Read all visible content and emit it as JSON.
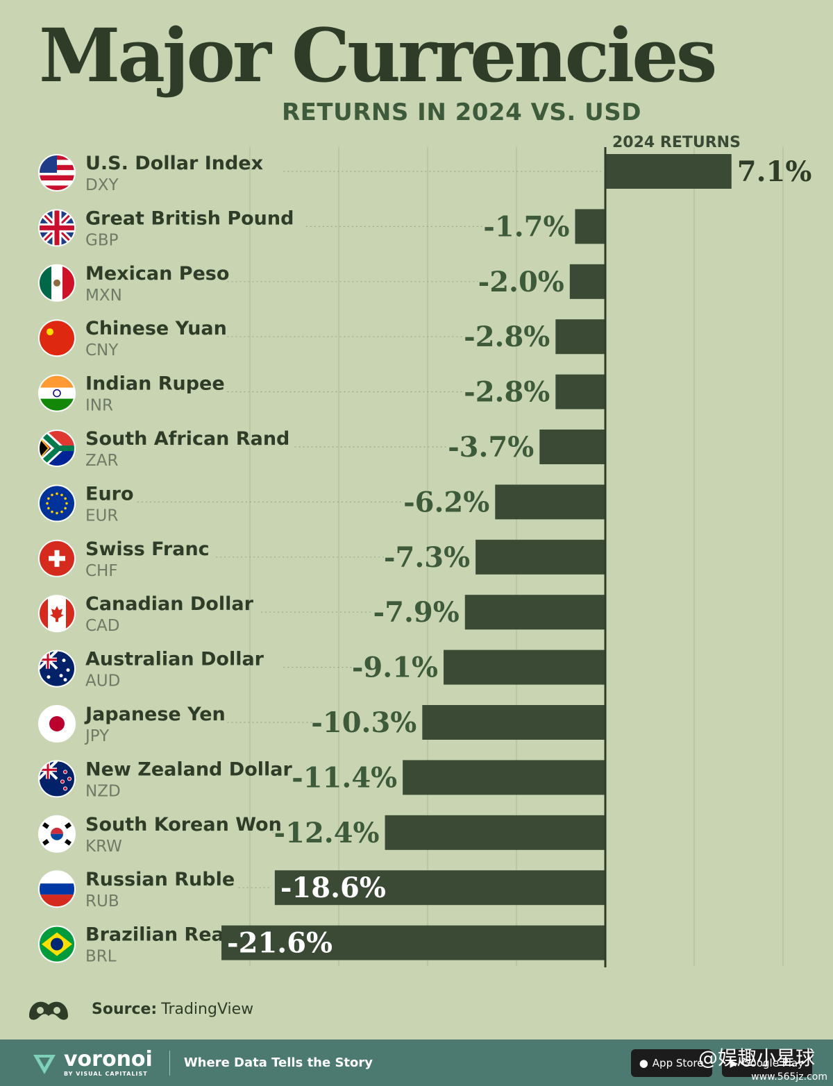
{
  "header": {
    "title": "Major Currencies",
    "subtitle": "RETURNS IN 2024 VS. USD"
  },
  "chart_data": {
    "type": "bar",
    "orientation": "horizontal",
    "title": "Major Currencies",
    "subtitle": "RETURNS IN 2024 VS. USD",
    "value_header": "2024 RETURNS",
    "unit": "%",
    "xlim": [
      -21.6,
      10
    ],
    "grid": true,
    "categories": [
      {
        "name": "U.S. Dollar Index",
        "code": "DXY",
        "flag": "us-flag"
      },
      {
        "name": "Great British Pound",
        "code": "GBP",
        "flag": "uk-flag"
      },
      {
        "name": "Mexican Peso",
        "code": "MXN",
        "flag": "mexico-flag"
      },
      {
        "name": "Chinese Yuan",
        "code": "CNY",
        "flag": "china-flag"
      },
      {
        "name": "Indian Rupee",
        "code": "INR",
        "flag": "india-flag"
      },
      {
        "name": "South African Rand",
        "code": "ZAR",
        "flag": "south-africa-flag"
      },
      {
        "name": "Euro",
        "code": "EUR",
        "flag": "eu-flag"
      },
      {
        "name": "Swiss Franc",
        "code": "CHF",
        "flag": "switzerland-flag"
      },
      {
        "name": "Canadian Dollar",
        "code": "CAD",
        "flag": "canada-flag"
      },
      {
        "name": "Australian Dollar",
        "code": "AUD",
        "flag": "australia-flag"
      },
      {
        "name": "Japanese Yen",
        "code": "JPY",
        "flag": "japan-flag"
      },
      {
        "name": "New Zealand Dollar",
        "code": "NZD",
        "flag": "new-zealand-flag"
      },
      {
        "name": "South Korean Won",
        "code": "KRW",
        "flag": "south-korea-flag"
      },
      {
        "name": "Russian Ruble",
        "code": "RUB",
        "flag": "russia-flag"
      },
      {
        "name": "Brazilian Real",
        "code": "BRL",
        "flag": "brazil-flag"
      }
    ],
    "values": [
      7.1,
      -1.7,
      -2.0,
      -2.8,
      -2.8,
      -3.7,
      -6.2,
      -7.3,
      -7.9,
      -9.1,
      -10.3,
      -11.4,
      -12.4,
      -18.6,
      -21.6
    ],
    "labels": [
      "7.1%",
      "-1.7%",
      "-2.0%",
      "-2.8%",
      "-2.8%",
      "-3.7%",
      "-6.2%",
      "-7.3%",
      "-7.9%",
      "-9.1%",
      "-10.3%",
      "-11.4%",
      "-12.4%",
      "-18.6%",
      "-21.6%"
    ],
    "colors": {
      "bar": "#3a4a35",
      "background": "#c9d5b2",
      "text": "#2f3d28",
      "inside_label": "#ffffff"
    }
  },
  "source": {
    "label": "Source:",
    "value": "TradingView"
  },
  "footer": {
    "brand": "voronoi",
    "brand_sub": "BY VISUAL CAPITALIST",
    "tagline": "Where Data Tells the Story",
    "app_store": "App Store",
    "google_play": "Google Play"
  },
  "watermark": {
    "text": "@娱趣小星球",
    "url": "www.565jz.com"
  }
}
